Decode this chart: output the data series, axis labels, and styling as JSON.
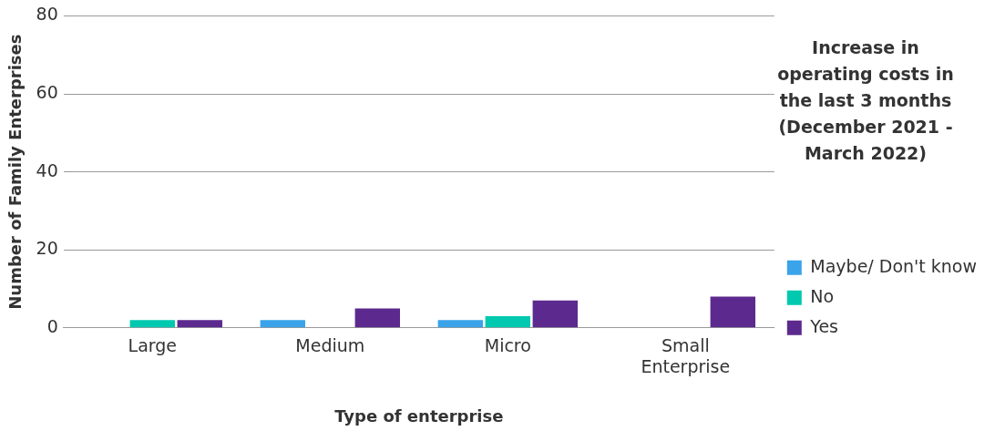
{
  "chart_data": {
    "type": "bar",
    "xlabel": "Type of enterprise",
    "ylabel": "Number of Family Enterprises",
    "legend_title": "Increase in operating costs in the last 3 months (December 2021 - March 2022)",
    "categories": [
      "Large",
      "Medium",
      "Micro",
      "Small Enterprise"
    ],
    "series": [
      {
        "name": "Maybe/ Don't know",
        "color": "#3aa3ea",
        "values": [
          null,
          2,
          2,
          null
        ]
      },
      {
        "name": "No",
        "color": "#00c9b0",
        "values": [
          2,
          null,
          3,
          null
        ]
      },
      {
        "name": "Yes",
        "color": "#5c2a8e",
        "values": [
          2,
          5,
          7,
          8
        ]
      }
    ],
    "ylim": [
      0,
      80
    ],
    "yticks": [
      0,
      20,
      40,
      60,
      80
    ],
    "grid": "y",
    "legend": "right"
  }
}
